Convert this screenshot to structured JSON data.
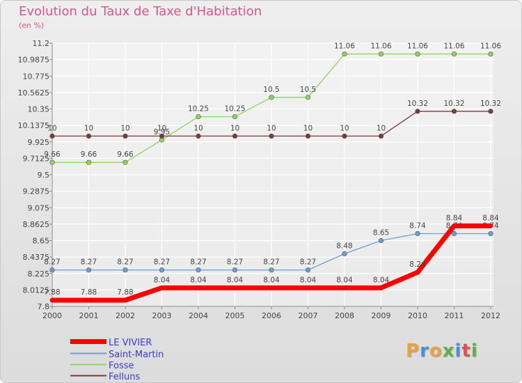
{
  "title": "Evolution du Taux de Taxe d'Habitation",
  "unit": "(en %)",
  "logo": {
    "text": "Proxiti",
    "letters": [
      "P",
      "r",
      "o",
      "x",
      "i",
      "t",
      "i"
    ],
    "colors": [
      "#e8a33d",
      "#4a90d9",
      "#e8a33d",
      "#5fb04a",
      "#4a90d9",
      "#e05050",
      "#5fb04a"
    ]
  },
  "chart_data": {
    "type": "line",
    "title": "Evolution du Taux de Taxe d'Habitation",
    "ylabel": "(en %)",
    "xlabel": "",
    "x": [
      "2000",
      "2001",
      "2002",
      "2003",
      "2004",
      "2005",
      "2006",
      "2007",
      "2008",
      "2009",
      "2010",
      "2011",
      "2012"
    ],
    "ylim": [
      7.8,
      11.2
    ],
    "yticks": [
      "7.8",
      "8.0125",
      "8.225",
      "8.4375",
      "8.65",
      "8.8625",
      "9.075",
      "9.2875",
      "9.5",
      "9.7125",
      "9.925",
      "10.1375",
      "10.35",
      "10.5625",
      "10.775",
      "10.9875",
      "11.2"
    ],
    "grid": true,
    "legend_position": "bottom-left",
    "series": [
      {
        "name": "LE VIVIER",
        "color": "#ff0000",
        "width": 7,
        "values": [
          7.88,
          7.88,
          7.88,
          8.04,
          8.04,
          8.04,
          8.04,
          8.04,
          8.04,
          8.04,
          8.24,
          8.84,
          8.84
        ],
        "labels": [
          "7.88",
          "7.88",
          "7.88",
          "8.04",
          "8.04",
          "8.04",
          "8.04",
          "8.04",
          "8.04",
          "8.04",
          "8.24",
          "8.84",
          "8.84"
        ]
      },
      {
        "name": "Saint-Martin",
        "color": "#6b9fcf",
        "width": 1.3,
        "values": [
          8.27,
          8.27,
          8.27,
          8.27,
          8.27,
          8.27,
          8.27,
          8.27,
          8.48,
          8.65,
          8.74,
          8.74,
          8.74
        ],
        "labels": [
          "8.27",
          "8.27",
          "8.27",
          "8.27",
          "8.27",
          "8.27",
          "8.27",
          "8.27",
          "8.48",
          "8.65",
          "8.74",
          "8.74",
          "8.74"
        ]
      },
      {
        "name": "Fosse",
        "color": "#8ed45e",
        "width": 1.3,
        "values": [
          9.66,
          9.66,
          9.66,
          9.95,
          10.25,
          10.25,
          10.5,
          10.5,
          11.06,
          11.06,
          11.06,
          11.06,
          11.06
        ],
        "labels": [
          "9.66",
          "9.66",
          "9.66",
          "9.95",
          "10.25",
          "10.25",
          "10.5",
          "10.5",
          "11.06",
          "11.06",
          "11.06",
          "11.06",
          "11.06"
        ]
      },
      {
        "name": "Felluns",
        "color": "#7a3a3a",
        "width": 1.3,
        "values": [
          10,
          10,
          10,
          10,
          10,
          10,
          10,
          10,
          10,
          10,
          10.32,
          10.32,
          10.32
        ],
        "labels": [
          "10",
          "10",
          "10",
          "10",
          "10",
          "10",
          "10",
          "10",
          "10",
          "10",
          "10.32",
          "10.32",
          "10.32"
        ]
      }
    ]
  }
}
